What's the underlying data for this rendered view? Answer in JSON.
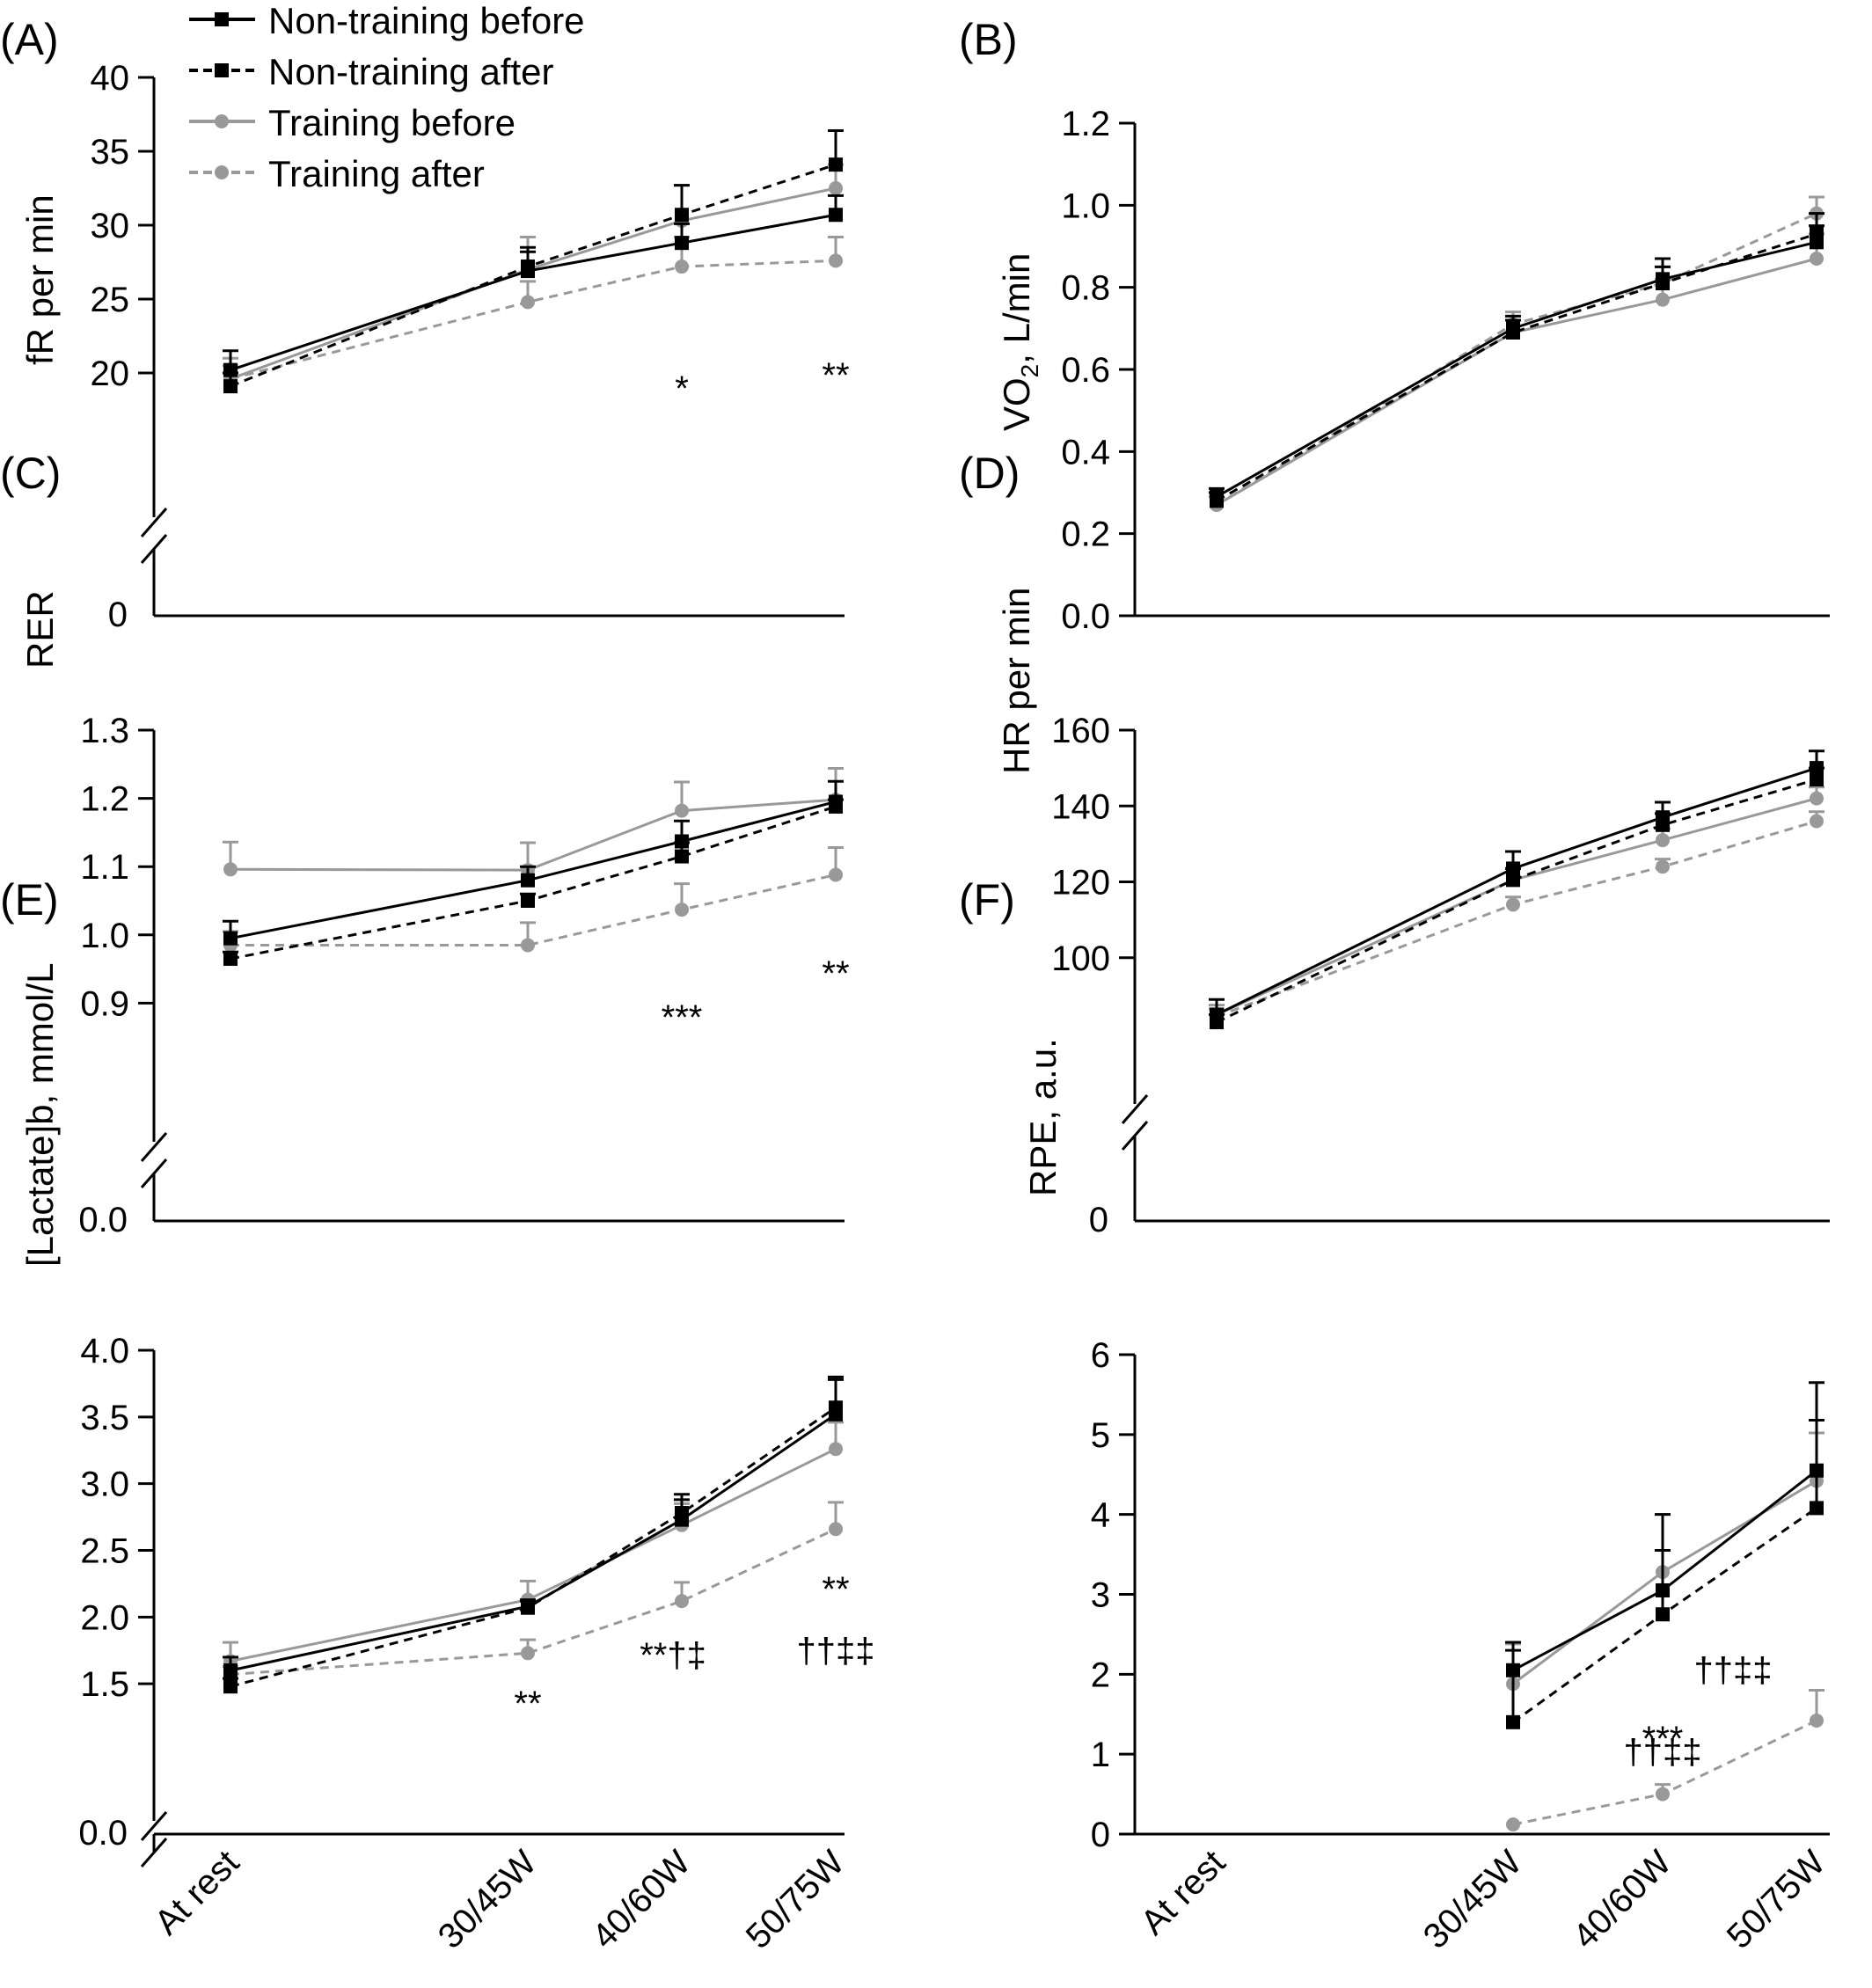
{
  "x_categories": [
    "At rest",
    "30/45W",
    "40/60W",
    "50/75W"
  ],
  "legend": [
    "Non-training before",
    "Non-training after",
    "Training before",
    "Training after"
  ],
  "colors": {
    "nontraining": "#000000",
    "training": "#999999",
    "axis": "#000000"
  },
  "chart_data": [
    {
      "panel": "(A)",
      "type": "line",
      "ylabel": "fR per min",
      "yticks": [
        20,
        25,
        30,
        35,
        40
      ],
      "ylim": [
        15,
        40
      ],
      "axis_break": true,
      "zero_label": "0",
      "series": [
        {
          "name": "Non-training before",
          "values": [
            20.2,
            26.9,
            28.8,
            30.7
          ],
          "errors": [
            1.3,
            1.3,
            1.3,
            1.3
          ]
        },
        {
          "name": "Non-training after",
          "values": [
            19.1,
            27.2,
            30.7,
            34.1
          ],
          "errors": [
            0.9,
            1.3,
            2.0,
            2.3
          ]
        },
        {
          "name": "Training before",
          "values": [
            19.6,
            27.0,
            30.3,
            32.5
          ],
          "errors": [
            0.9,
            2.2,
            2.4,
            1.6
          ]
        },
        {
          "name": "Training after",
          "values": [
            19.6,
            24.8,
            27.2,
            27.6
          ],
          "errors": [
            1.4,
            1.4,
            2.0,
            1.6
          ]
        }
      ],
      "annotations": [
        {
          "x": "40/60W",
          "text": "*"
        },
        {
          "x": "50/75W",
          "text": "**"
        }
      ]
    },
    {
      "panel": "(B)",
      "type": "line",
      "ylabel": "VO2, L/min",
      "yticks": [
        "0.0",
        "0.2",
        "0.4",
        "0.6",
        "0.8",
        "1.0",
        "1.2"
      ],
      "ylim": [
        0,
        1.2
      ],
      "axis_break": false,
      "series": [
        {
          "name": "Non-training before",
          "values": [
            0.29,
            0.7,
            0.82,
            0.91
          ],
          "errors": [
            0.02,
            0.03,
            0.05,
            0.04
          ]
        },
        {
          "name": "Non-training after",
          "values": [
            0.28,
            0.69,
            0.81,
            0.93
          ],
          "errors": [
            0.02,
            0.03,
            0.04,
            0.05
          ]
        },
        {
          "name": "Training before",
          "values": [
            0.27,
            0.69,
            0.77,
            0.87
          ],
          "errors": [
            0.02,
            0.04,
            0.05,
            0.06
          ]
        },
        {
          "name": "Training after",
          "values": [
            0.27,
            0.71,
            0.81,
            0.98
          ],
          "errors": [
            0.02,
            0.03,
            0.04,
            0.04
          ]
        }
      ],
      "annotations": []
    },
    {
      "panel": "(C)",
      "type": "line",
      "ylabel": "RER",
      "yticks": [
        "0.9",
        "1.0",
        "1.1",
        "1.2",
        "1.3"
      ],
      "ylim": [
        0.8,
        1.3
      ],
      "axis_break": true,
      "zero_label": "0.0",
      "series": [
        {
          "name": "Non-training before",
          "values": [
            0.995,
            1.08,
            1.137,
            1.195
          ],
          "errors": [
            0.025,
            0.02,
            0.03,
            0.03
          ]
        },
        {
          "name": "Non-training after",
          "values": [
            0.965,
            1.05,
            1.115,
            1.188
          ],
          "errors": [
            0.01,
            0.01,
            0.02,
            0.01
          ]
        },
        {
          "name": "Training before",
          "values": [
            1.096,
            1.095,
            1.182,
            1.198
          ],
          "errors": [
            0.04,
            0.04,
            0.042,
            0.046
          ]
        },
        {
          "name": "Training after",
          "values": [
            0.985,
            0.985,
            1.037,
            1.088
          ],
          "errors": [
            0.02,
            0.033,
            0.038,
            0.04
          ]
        }
      ],
      "annotations": [
        {
          "x": "40/60W",
          "text": "***"
        },
        {
          "x": "50/75W",
          "text": "**"
        }
      ]
    },
    {
      "panel": "(D)",
      "type": "line",
      "ylabel": "HR per min",
      "yticks": [
        100,
        120,
        140,
        160
      ],
      "ylim": [
        80,
        160
      ],
      "axis_break": true,
      "zero_label": "0",
      "series": [
        {
          "name": "Non-training before",
          "values": [
            85,
            123.5,
            137,
            150
          ],
          "errors": [
            4,
            4.5,
            4,
            4.5
          ]
        },
        {
          "name": "Non-training after",
          "values": [
            83,
            120.5,
            135,
            147
          ],
          "errors": [
            2,
            3,
            3,
            3
          ]
        },
        {
          "name": "Training before",
          "values": [
            85,
            120.5,
            131,
            142
          ],
          "errors": [
            2.5,
            3,
            3,
            3
          ]
        },
        {
          "name": "Training after",
          "values": [
            84.5,
            114,
            124,
            136
          ],
          "errors": [
            2,
            2,
            2,
            2.5
          ]
        }
      ],
      "annotations": []
    },
    {
      "panel": "(E)",
      "type": "line",
      "ylabel": "[Lactate]b, mmol/L",
      "yticks": [
        "1.5",
        "2.0",
        "2.5",
        "3.0",
        "3.5",
        "4.0"
      ],
      "ylim": [
        1.0,
        4.0
      ],
      "axis_break": true,
      "zero_label": "0.0",
      "series": [
        {
          "name": "Non-training before",
          "values": [
            1.6,
            2.08,
            2.73,
            3.52
          ],
          "errors": [
            0.1,
            0.05,
            0.15,
            0.26
          ]
        },
        {
          "name": "Non-training after",
          "values": [
            1.48,
            2.07,
            2.78,
            3.57
          ],
          "errors": [
            0.06,
            0.05,
            0.14,
            0.23
          ]
        },
        {
          "name": "Training before",
          "values": [
            1.67,
            2.13,
            2.69,
            3.26
          ],
          "errors": [
            0.14,
            0.14,
            0.16,
            0.2
          ]
        },
        {
          "name": "Training after",
          "values": [
            1.57,
            1.73,
            2.12,
            2.66
          ],
          "errors": [
            0.06,
            0.1,
            0.14,
            0.2
          ]
        }
      ],
      "annotations": [
        {
          "x": "30/45W",
          "text": "**"
        },
        {
          "x": "40/60W",
          "text": "**†‡"
        },
        {
          "x": "50/75W",
          "text": "**"
        },
        {
          "x": "50/75W",
          "text": "††‡‡"
        }
      ]
    },
    {
      "panel": "(F)",
      "type": "line",
      "ylabel": "RPE, a.u.",
      "yticks": [
        0,
        1,
        2,
        3,
        4,
        5,
        6
      ],
      "ylim": [
        0,
        6
      ],
      "axis_break": false,
      "series": [
        {
          "name": "Non-training before",
          "values": [
            null,
            2.05,
            3.05,
            4.55
          ],
          "errors": [
            null,
            0.35,
            0.95,
            1.1
          ]
        },
        {
          "name": "Non-training after",
          "values": [
            null,
            1.4,
            2.75,
            4.08
          ],
          "errors": [
            null,
            0.9,
            0.8,
            1.1
          ]
        },
        {
          "name": "Training before",
          "values": [
            null,
            1.88,
            3.28,
            4.42
          ],
          "errors": [
            null,
            0.5,
            0.72,
            0.6
          ]
        },
        {
          "name": "Training after",
          "values": [
            null,
            0.12,
            0.5,
            1.42
          ],
          "errors": [
            null,
            0,
            0.12,
            0.38
          ]
        }
      ],
      "annotations": [
        {
          "x": "40/60W",
          "text": "††‡‡"
        },
        {
          "x": "40/60W",
          "text": "***"
        },
        {
          "x": "40/60W",
          "text": "††‡‡"
        },
        {
          "x": "50/75W",
          "text": "***"
        }
      ]
    }
  ]
}
